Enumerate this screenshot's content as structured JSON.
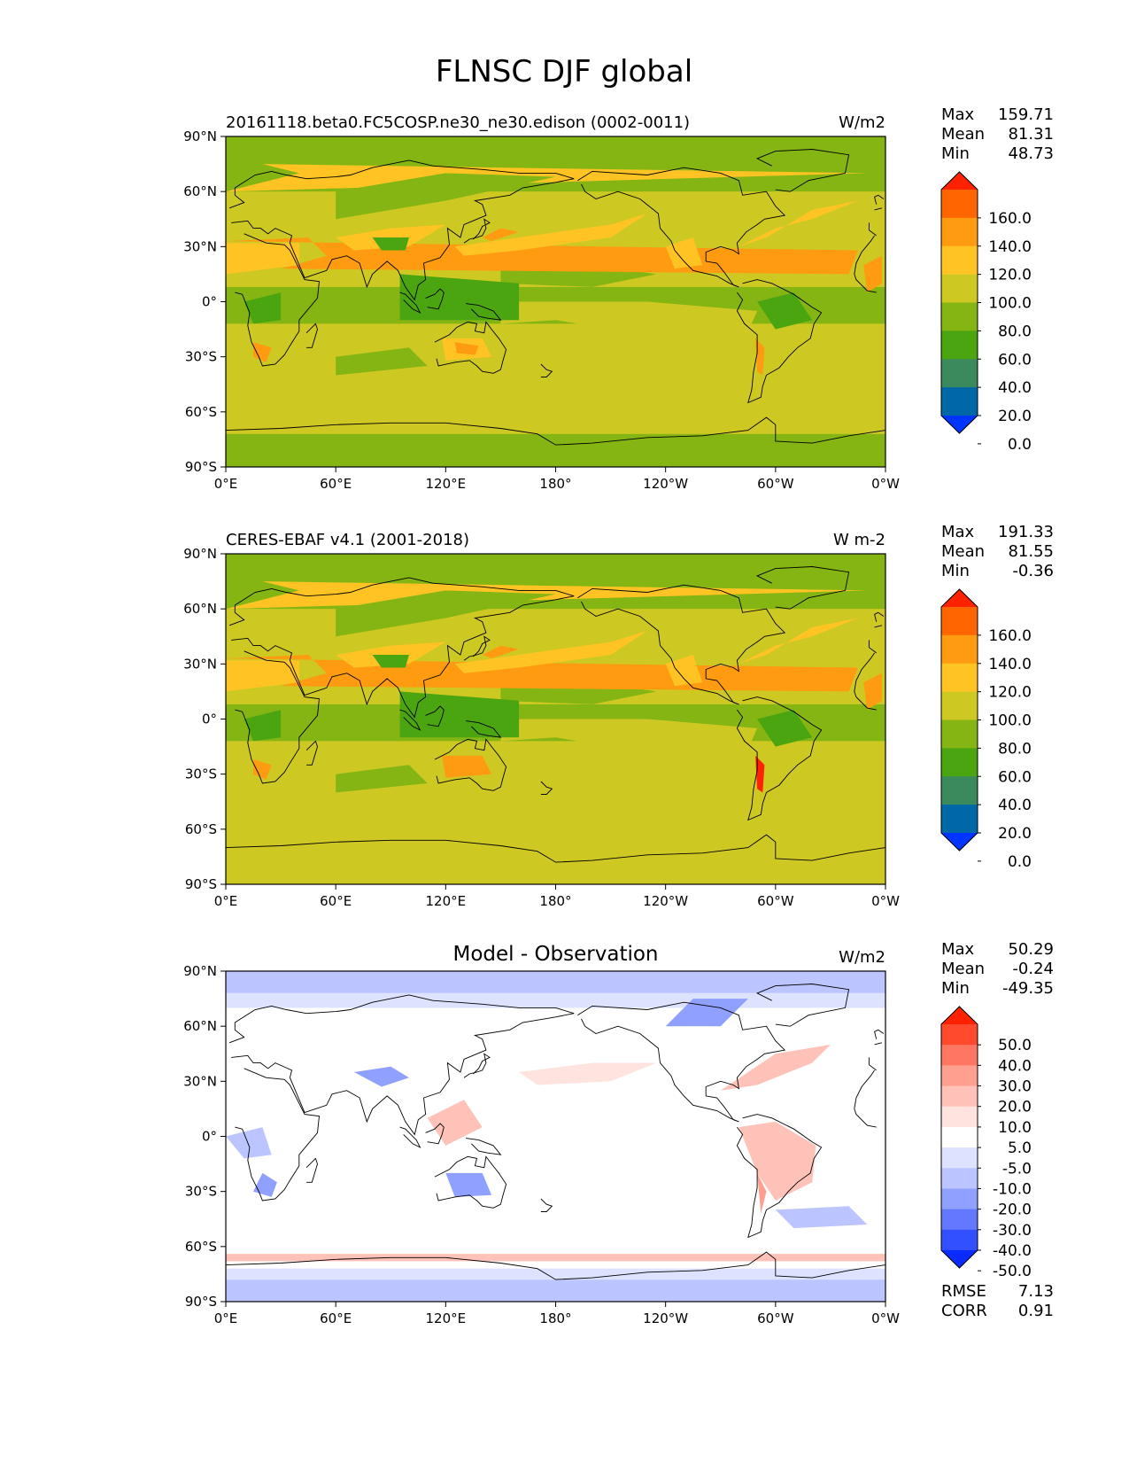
{
  "page_title": "FLNSC DJF global",
  "lat_ticks": [
    "90°N",
    "60°N",
    "30°N",
    "0°",
    "30°S",
    "60°S",
    "90°S"
  ],
  "lon_ticks": [
    "0°E",
    "60°E",
    "120°E",
    "180°",
    "120°W",
    "60°W",
    "0°W"
  ],
  "chart_data": [
    {
      "type": "heatmap",
      "title": "",
      "subtitle": "20161118.beta0.FC5COSP.ne30_ne30.edison (0002-0011)",
      "units": "W/m2",
      "stats": [
        {
          "label": "Max",
          "value": "159.71"
        },
        {
          "label": "Mean",
          "value": "81.31"
        },
        {
          "label": "Min",
          "value": "48.73"
        }
      ],
      "colorbar": {
        "labels": [
          "160.0",
          "140.0",
          "120.0",
          "100.0",
          "80.0",
          "60.0",
          "40.0",
          "20.0",
          "0.0"
        ],
        "colors": [
          "#ff2200",
          "#ff6600",
          "#ff9b10",
          "#ffc423",
          "#cec823",
          "#84b513",
          "#4aa510",
          "#3a8a5e",
          "#0068a6",
          "#0034ff"
        ]
      },
      "extra_stats": []
    },
    {
      "type": "heatmap",
      "title": "",
      "subtitle": "CERES-EBAF v4.1 (2001-2018)",
      "units": "W m-2",
      "stats": [
        {
          "label": "Max",
          "value": "191.33"
        },
        {
          "label": "Mean",
          "value": "81.55"
        },
        {
          "label": "Min",
          "value": "-0.36"
        }
      ],
      "colorbar": {
        "labels": [
          "160.0",
          "140.0",
          "120.0",
          "100.0",
          "80.0",
          "60.0",
          "40.0",
          "20.0",
          "0.0"
        ],
        "colors": [
          "#ff2200",
          "#ff6600",
          "#ff9b10",
          "#ffc423",
          "#cec823",
          "#84b513",
          "#4aa510",
          "#3a8a5e",
          "#0068a6",
          "#0034ff"
        ]
      },
      "extra_stats": []
    },
    {
      "type": "heatmap",
      "title": "Model - Observation",
      "subtitle": "",
      "units": "W/m2",
      "stats": [
        {
          "label": "Max",
          "value": "50.29"
        },
        {
          "label": "Mean",
          "value": "-0.24"
        },
        {
          "label": "Min",
          "value": "-49.35"
        }
      ],
      "colorbar": {
        "labels": [
          "50.0",
          "40.0",
          "30.0",
          "20.0",
          "10.0",
          "5.0",
          "-5.0",
          "-10.0",
          "-20.0",
          "-30.0",
          "-40.0",
          "-50.0"
        ],
        "colors": [
          "#ff2200",
          "#ff4a2e",
          "#ff7763",
          "#ff9f8f",
          "#ffc2b8",
          "#ffe3de",
          "#ffffff",
          "#dde2ff",
          "#bcc5ff",
          "#8fa0ff",
          "#6377ff",
          "#3250ff",
          "#0a2bff"
        ]
      },
      "extra_stats": [
        {
          "label": "RMSE",
          "value": "7.13"
        },
        {
          "label": "CORR",
          "value": "0.91"
        }
      ]
    }
  ]
}
